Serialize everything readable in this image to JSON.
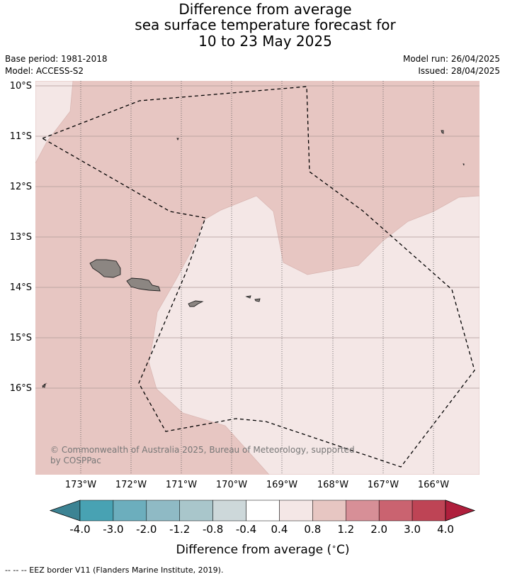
{
  "title": {
    "line1": "Difference from average",
    "line2": "sea surface temperature forecast for",
    "line3": "10 to 23 May 2025"
  },
  "meta": {
    "base_period": "Base period: 1981-2018",
    "model": "Model: ACCESS-S2",
    "model_run": "Model run: 26/04/2025",
    "issued": "Issued: 28/04/2025"
  },
  "map": {
    "lat_labels": [
      "10°S",
      "11°S",
      "12°S",
      "13°S",
      "14°S",
      "15°S",
      "16°S"
    ],
    "lon_labels": [
      "173°W",
      "172°W",
      "171°W",
      "170°W",
      "169°W",
      "168°W",
      "167°W",
      "166°W"
    ],
    "credit_line1": "© Commonwealth of Australia 2025, Bureau of Meteorology, supported",
    "credit_line2": "by COSPPac",
    "fill_colors": {
      "anomaly_0p4_to_0p8": "#f4e7e6",
      "anomaly_0p8_to_1p2": "#e7c6c2",
      "land": "#8c8682"
    }
  },
  "colorbar": {
    "tick_labels": [
      "-4.0",
      "-3.0",
      "-2.0",
      "-1.2",
      "-0.8",
      "-0.4",
      "0.4",
      "0.8",
      "1.2",
      "2.0",
      "3.0",
      "4.0"
    ],
    "colors": [
      "#3c8393",
      "#48a2b3",
      "#6caebd",
      "#8fbac5",
      "#a9c6cb",
      "#cdd8da",
      "#ffffff",
      "#f4e7e6",
      "#e7c6c2",
      "#d78f97",
      "#ca6370",
      "#be4455",
      "#af1f3c"
    ],
    "label": "Difference from average ( C)",
    "label_prefix": "Difference from average (",
    "label_degree": "∘",
    "label_suffix": "C)"
  },
  "footnote": "--  --  -- EEZ border V11 (Flanders Marine Institute, 2019)."
}
